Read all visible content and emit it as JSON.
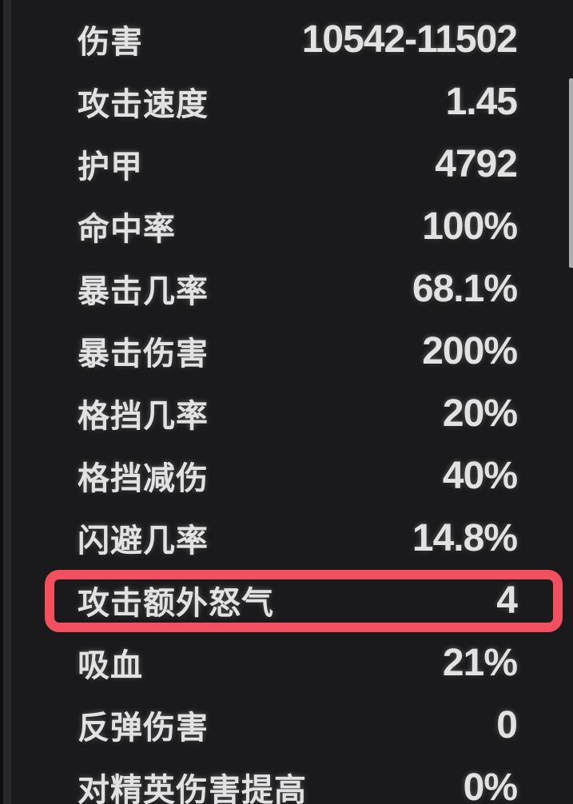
{
  "panel": {
    "name": "character-stats-panel",
    "stats": {
      "rows": [
        {
          "label": "伤害",
          "value": "10542-11502",
          "highlighted": false
        },
        {
          "label": "攻击速度",
          "value": "1.45",
          "highlighted": false
        },
        {
          "label": "护甲",
          "value": "4792",
          "highlighted": false
        },
        {
          "label": "命中率",
          "value": "100%",
          "highlighted": false
        },
        {
          "label": "暴击几率",
          "value": "68.1%",
          "highlighted": false
        },
        {
          "label": "暴击伤害",
          "value": "200%",
          "highlighted": false
        },
        {
          "label": "格挡几率",
          "value": "20%",
          "highlighted": false
        },
        {
          "label": "格挡减伤",
          "value": "40%",
          "highlighted": false
        },
        {
          "label": "闪避几率",
          "value": "14.8%",
          "highlighted": false
        },
        {
          "label": "攻击额外怒气",
          "value": "4",
          "highlighted": true
        },
        {
          "label": "吸血",
          "value": "21%",
          "highlighted": false
        },
        {
          "label": "反弹伤害",
          "value": "0",
          "highlighted": false
        },
        {
          "label": "对精英伤害提高",
          "value": "0%",
          "highlighted": false
        }
      ]
    },
    "colors": {
      "background": "#1a191b",
      "text": "#e3e2e2",
      "highlight_border": "#f3505f",
      "scrollbar": "#aeaeae",
      "left_edge_strip": "#28282b"
    },
    "scrollbar_visible": true
  }
}
